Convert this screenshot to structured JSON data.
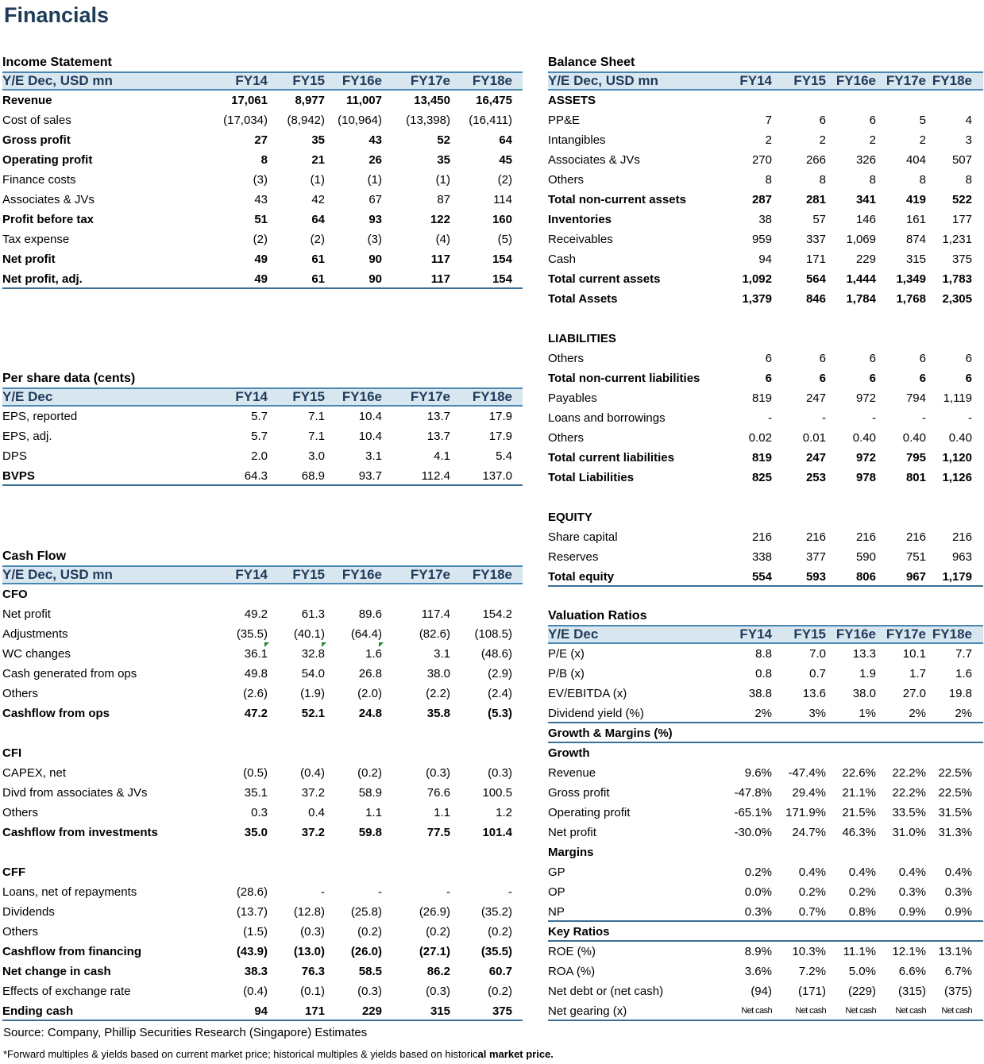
{
  "title": "Financials",
  "left": [
    {
      "id": "income",
      "title": "Income Statement",
      "header": "Y/E Dec, USD mn",
      "years": [
        "FY14",
        "FY15",
        "FY16e",
        "FY17e",
        "FY18e"
      ],
      "rows": [
        {
          "label": "Revenue",
          "bold": true,
          "v": [
            "17,061",
            "8,977",
            "11,007",
            "13,450",
            "16,475"
          ]
        },
        {
          "label": "Cost of sales",
          "v": [
            "(17,034)",
            "(8,942)",
            "(10,964)",
            "(13,398)",
            "(16,411)"
          ]
        },
        {
          "label": "Gross profit",
          "bold": true,
          "v": [
            "27",
            "35",
            "43",
            "52",
            "64"
          ]
        },
        {
          "label": "Operating profit",
          "bold": true,
          "v": [
            "8",
            "21",
            "26",
            "35",
            "45"
          ]
        },
        {
          "label": "Finance costs",
          "v": [
            "(3)",
            "(1)",
            "(1)",
            "(1)",
            "(2)"
          ]
        },
        {
          "label": "Associates & JVs",
          "v": [
            "43",
            "42",
            "67",
            "87",
            "114"
          ]
        },
        {
          "label": "Profit before tax",
          "bold": true,
          "v": [
            "51",
            "64",
            "93",
            "122",
            "160"
          ]
        },
        {
          "label": "Tax expense",
          "v": [
            "(2)",
            "(2)",
            "(3)",
            "(4)",
            "(5)"
          ]
        },
        {
          "label": "Net profit",
          "bold": true,
          "v": [
            "49",
            "61",
            "90",
            "117",
            "154"
          ]
        },
        {
          "label": "Net profit, adj.",
          "bold": true,
          "end": true,
          "v": [
            "49",
            "61",
            "90",
            "117",
            "154"
          ]
        }
      ]
    },
    {
      "id": "pershare",
      "title": "Per share data (cents)",
      "header": "Y/E Dec",
      "years": [
        "FY14",
        "FY15",
        "FY16e",
        "FY17e",
        "FY18e"
      ],
      "rows": [
        {
          "label": "EPS, reported",
          "v": [
            "5.7",
            "7.1",
            "10.4",
            "13.7",
            "17.9"
          ]
        },
        {
          "label": "EPS, adj.",
          "v": [
            "5.7",
            "7.1",
            "10.4",
            "13.7",
            "17.9"
          ]
        },
        {
          "label": "DPS",
          "v": [
            "2.0",
            "3.0",
            "3.1",
            "4.1",
            "5.4"
          ]
        },
        {
          "label": "BVPS",
          "boldlabel": true,
          "end": true,
          "v": [
            "64.3",
            "68.9",
            "93.7",
            "112.4",
            "137.0"
          ]
        }
      ]
    },
    {
      "id": "cashflow",
      "title": "Cash Flow",
      "header": "Y/E Dec, USD mn",
      "years": [
        "FY14",
        "FY15",
        "FY16e",
        "FY17e",
        "FY18e"
      ],
      "rows": [
        {
          "label": "CFO",
          "bold": true,
          "v": [
            "",
            "",
            "",
            "",
            ""
          ]
        },
        {
          "label": "Net profit",
          "v": [
            "49.2",
            "61.3",
            "89.6",
            "117.4",
            "154.2"
          ]
        },
        {
          "label": "Adjustments",
          "v": [
            "(35.5)",
            "(40.1)",
            "(64.4)",
            "(82.6)",
            "(108.5)"
          ]
        },
        {
          "label": "WC changes",
          "v": [
            "36.1",
            "32.8",
            "1.6",
            "3.1",
            "(48.6)"
          ],
          "tri": [
            1,
            2,
            3
          ]
        },
        {
          "label": "Cash generated from ops",
          "v": [
            "49.8",
            "54.0",
            "26.8",
            "38.0",
            "(2.9)"
          ]
        },
        {
          "label": "Others",
          "v": [
            "(2.6)",
            "(1.9)",
            "(2.0)",
            "(2.2)",
            "(2.4)"
          ]
        },
        {
          "label": "Cashflow from ops",
          "bold": true,
          "v": [
            "47.2",
            "52.1",
            "24.8",
            "35.8",
            "(5.3)"
          ]
        },
        {
          "label": "",
          "v": [
            "",
            "",
            "",
            "",
            ""
          ]
        },
        {
          "label": "CFI",
          "bold": true,
          "v": [
            "",
            "",
            "",
            "",
            ""
          ]
        },
        {
          "label": "CAPEX, net",
          "v": [
            "(0.5)",
            "(0.4)",
            "(0.2)",
            "(0.3)",
            "(0.3)"
          ]
        },
        {
          "label": "Divd from associates & JVs",
          "v": [
            "35.1",
            "37.2",
            "58.9",
            "76.6",
            "100.5"
          ]
        },
        {
          "label": "Others",
          "v": [
            "0.3",
            "0.4",
            "1.1",
            "1.1",
            "1.2"
          ]
        },
        {
          "label": "Cashflow from investments",
          "bold": true,
          "v": [
            "35.0",
            "37.2",
            "59.8",
            "77.5",
            "101.4"
          ]
        },
        {
          "label": "",
          "v": [
            "",
            "",
            "",
            "",
            ""
          ]
        },
        {
          "label": "CFF",
          "bold": true,
          "v": [
            "",
            "",
            "",
            "",
            ""
          ]
        },
        {
          "label": "Loans, net of repayments",
          "v": [
            "(28.6)",
            "-",
            "-",
            "-",
            "-"
          ]
        },
        {
          "label": "Dividends",
          "v": [
            "(13.7)",
            "(12.8)",
            "(25.8)",
            "(26.9)",
            "(35.2)"
          ]
        },
        {
          "label": "Others",
          "v": [
            "(1.5)",
            "(0.3)",
            "(0.2)",
            "(0.2)",
            "(0.2)"
          ]
        },
        {
          "label": "Cashflow from financing",
          "bold": true,
          "v": [
            "(43.9)",
            "(13.0)",
            "(26.0)",
            "(27.1)",
            "(35.5)"
          ]
        },
        {
          "label": "Net change in cash",
          "bold": true,
          "v": [
            "38.3",
            "76.3",
            "58.5",
            "86.2",
            "60.7"
          ]
        },
        {
          "label": "Effects of exchange rate",
          "v": [
            "(0.4)",
            "(0.1)",
            "(0.3)",
            "(0.3)",
            "(0.2)"
          ]
        },
        {
          "label": "Ending cash",
          "bold": true,
          "end": true,
          "v": [
            "94",
            "171",
            "229",
            "315",
            "375"
          ]
        }
      ]
    }
  ],
  "right": [
    {
      "id": "balance",
      "title": "Balance Sheet",
      "header": "Y/E Dec, USD mn",
      "years": [
        "FY14",
        "FY15",
        "FY16e",
        "FY17e",
        "FY18e"
      ],
      "rows": [
        {
          "label": "ASSETS",
          "bold": true,
          "v": [
            "",
            "",
            "",
            "",
            ""
          ]
        },
        {
          "label": "PP&E",
          "v": [
            "7",
            "6",
            "6",
            "5",
            "4"
          ]
        },
        {
          "label": "Intangibles",
          "v": [
            "2",
            "2",
            "2",
            "2",
            "3"
          ]
        },
        {
          "label": "Associates & JVs",
          "v": [
            "270",
            "266",
            "326",
            "404",
            "507"
          ]
        },
        {
          "label": "Others",
          "v": [
            "8",
            "8",
            "8",
            "8",
            "8"
          ]
        },
        {
          "label": "Total non-current assets",
          "bold": true,
          "v": [
            "287",
            "281",
            "341",
            "419",
            "522"
          ]
        },
        {
          "label": "Inventories",
          "boldlabel": true,
          "v": [
            "38",
            "57",
            "146",
            "161",
            "177"
          ]
        },
        {
          "label": "Receivables",
          "v": [
            "959",
            "337",
            "1,069",
            "874",
            "1,231"
          ]
        },
        {
          "label": "Cash",
          "v": [
            "94",
            "171",
            "229",
            "315",
            "375"
          ]
        },
        {
          "label": "Total current assets",
          "bold": true,
          "v": [
            "1,092",
            "564",
            "1,444",
            "1,349",
            "1,783"
          ]
        },
        {
          "label": "Total Assets",
          "bold": true,
          "v": [
            "1,379",
            "846",
            "1,784",
            "1,768",
            "2,305"
          ]
        },
        {
          "label": "",
          "v": [
            "",
            "",
            "",
            "",
            ""
          ]
        },
        {
          "label": "LIABILITIES",
          "bold": true,
          "v": [
            "",
            "",
            "",
            "",
            ""
          ]
        },
        {
          "label": "Others",
          "v": [
            "6",
            "6",
            "6",
            "6",
            "6"
          ]
        },
        {
          "label": "Total non-current liabilities",
          "bold": true,
          "v": [
            "6",
            "6",
            "6",
            "6",
            "6"
          ]
        },
        {
          "label": "Payables",
          "v": [
            "819",
            "247",
            "972",
            "794",
            "1,119"
          ]
        },
        {
          "label": "Loans and borrowings",
          "v": [
            "-",
            "-",
            "-",
            "-",
            "-"
          ]
        },
        {
          "label": "Others",
          "v": [
            "0.02",
            "0.01",
            "0.40",
            "0.40",
            "0.40"
          ]
        },
        {
          "label": "Total current liabilities",
          "bold": true,
          "v": [
            "819",
            "247",
            "972",
            "795",
            "1,120"
          ]
        },
        {
          "label": "Total Liabilities",
          "bold": true,
          "v": [
            "825",
            "253",
            "978",
            "801",
            "1,126"
          ]
        },
        {
          "label": "",
          "v": [
            "",
            "",
            "",
            "",
            ""
          ]
        },
        {
          "label": "EQUITY",
          "bold": true,
          "v": [
            "",
            "",
            "",
            "",
            ""
          ]
        },
        {
          "label": "Share capital",
          "v": [
            "216",
            "216",
            "216",
            "216",
            "216"
          ]
        },
        {
          "label": "Reserves",
          "v": [
            "338",
            "377",
            "590",
            "751",
            "963"
          ]
        },
        {
          "label": "Total equity",
          "bold": true,
          "end": true,
          "v": [
            "554",
            "593",
            "806",
            "967",
            "1,179"
          ]
        }
      ]
    },
    {
      "id": "valuation",
      "title": "Valuation Ratios",
      "header": "Y/E Dec",
      "years": [
        "FY14",
        "FY15",
        "FY16e",
        "FY17e",
        "FY18e"
      ],
      "rows": [
        {
          "label": "P/E (x)",
          "v": [
            "8.8",
            "7.0",
            "13.3",
            "10.1",
            "7.7"
          ]
        },
        {
          "label": "P/B (x)",
          "v": [
            "0.8",
            "0.7",
            "1.9",
            "1.7",
            "1.6"
          ]
        },
        {
          "label": "EV/EBITDA (x)",
          "v": [
            "38.8",
            "13.6",
            "38.0",
            "27.0",
            "19.8"
          ]
        },
        {
          "label": "Dividend yield (%)",
          "end": true,
          "v": [
            "2%",
            "3%",
            "1%",
            "2%",
            "2%"
          ]
        },
        {
          "label": "Growth & Margins (%)",
          "bold": true,
          "end": true,
          "v": [
            "",
            "",
            "",
            "",
            ""
          ]
        },
        {
          "label": "Growth",
          "bold": true,
          "v": [
            "",
            "",
            "",
            "",
            ""
          ]
        },
        {
          "label": "Revenue",
          "v": [
            "9.6%",
            "-47.4%",
            "22.6%",
            "22.2%",
            "22.5%"
          ]
        },
        {
          "label": "Gross profit",
          "v": [
            "-47.8%",
            "29.4%",
            "21.1%",
            "22.2%",
            "22.5%"
          ]
        },
        {
          "label": "Operating profit",
          "v": [
            "-65.1%",
            "171.9%",
            "21.5%",
            "33.5%",
            "31.5%"
          ]
        },
        {
          "label": "Net profit",
          "v": [
            "-30.0%",
            "24.7%",
            "46.3%",
            "31.0%",
            "31.3%"
          ]
        },
        {
          "label": "Margins",
          "bold": true,
          "v": [
            "",
            "",
            "",
            "",
            ""
          ]
        },
        {
          "label": "GP",
          "v": [
            "0.2%",
            "0.4%",
            "0.4%",
            "0.4%",
            "0.4%"
          ]
        },
        {
          "label": "OP",
          "v": [
            "0.0%",
            "0.2%",
            "0.2%",
            "0.3%",
            "0.3%"
          ]
        },
        {
          "label": "NP",
          "end": true,
          "v": [
            "0.3%",
            "0.7%",
            "0.8%",
            "0.9%",
            "0.9%"
          ]
        },
        {
          "label": "Key Ratios",
          "bold": true,
          "end": true,
          "v": [
            "",
            "",
            "",
            "",
            ""
          ]
        },
        {
          "label": "ROE (%)",
          "v": [
            "8.9%",
            "10.3%",
            "11.1%",
            "12.1%",
            "13.1%"
          ]
        },
        {
          "label": "ROA (%)",
          "v": [
            "3.6%",
            "7.2%",
            "5.0%",
            "6.6%",
            "6.7%"
          ]
        },
        {
          "label": "Net debt or (net cash)",
          "v": [
            "(94)",
            "(171)",
            "(229)",
            "(315)",
            "(375)"
          ]
        },
        {
          "label": "Net gearing (x)",
          "small": true,
          "end": true,
          "v": [
            "Net cash",
            "Net cash",
            "Net cash",
            "Net cash",
            "Net cash"
          ]
        }
      ]
    }
  ],
  "footer": {
    "source": "Source: Company, Phillip Securities Research (Singapore) Estimates",
    "note_pre": "*Forward multiples & yields based on current market price; historical multiples & yields based on historic",
    "note_bold": "al market price."
  }
}
